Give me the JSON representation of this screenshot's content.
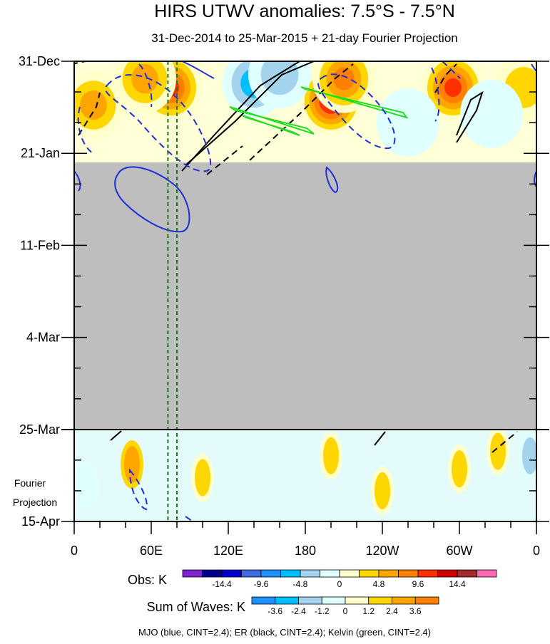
{
  "chart_data": {
    "type": "heatmap",
    "title": "HIRS UTWV anomalies: 7.5°S - 7.5°N",
    "subtitle": "31-Dec-2014 to 25-Mar-2015 + 21-day Fourier Projection",
    "x_ticks": [
      "0",
      "60E",
      "120E",
      "180",
      "120W",
      "60W",
      "0"
    ],
    "x_values": [
      0,
      60,
      120,
      180,
      240,
      300,
      360
    ],
    "y_ticks": [
      "31-Dec",
      "21-Jan",
      "11-Feb",
      "4-Mar",
      "25-Mar",
      "15-Apr"
    ],
    "y_days": [
      0,
      21,
      42,
      63,
      84,
      105
    ],
    "obs_end_day": 23,
    "projection_start_day": 84,
    "projection_label": [
      "Fourier",
      "Projection"
    ],
    "missing_color": "#bebebe",
    "obs_colorbar": {
      "label": "Obs: K",
      "colors": [
        "#7d26cd",
        "#00008b",
        "#0000cd",
        "#4169e1",
        "#1e90ff",
        "#00bfff",
        "#a4d3ee",
        "#e0ffff",
        "#ffffcc",
        "#ffd700",
        "#ffa500",
        "#ff7f00",
        "#ff3000",
        "#cd0000",
        "#a52a2a",
        "#ff69b4"
      ],
      "labels": [
        "-14.4",
        "-9.6",
        "-4.8",
        "0",
        "4.8",
        "9.6",
        "14.4"
      ]
    },
    "waves_colorbar": {
      "label": "Sum of Waves: K",
      "colors": [
        "#1e90ff",
        "#00bfff",
        "#a4d3ee",
        "#e0ffff",
        "#ffffcc",
        "#ffd700",
        "#ffa500",
        "#ff7f00"
      ],
      "labels": [
        "-3.6",
        "-2.4",
        "-1.2",
        "0",
        "1.2",
        "2.4",
        "3.6"
      ]
    },
    "legend_text": "MJO (blue, CINT=2.4); ER (black, CINT=2.4); Kelvin (green, CINT=2.4)",
    "contour_colors": {
      "mjo": "#1e2fd6",
      "er": "#000000",
      "kelvin": "#22dd22",
      "marker": "#1a7a1a"
    },
    "marker_lines_lon": [
      73,
      80
    ],
    "obs_hotspots": [
      {
        "lon": 75,
        "day": 6,
        "value": 12
      },
      {
        "lon": 55,
        "day": 4,
        "value": 8
      },
      {
        "lon": 15,
        "day": 10,
        "value": 6
      },
      {
        "lon": 200,
        "day": 9,
        "value": 14
      },
      {
        "lon": 210,
        "day": 4,
        "value": 10
      },
      {
        "lon": 295,
        "day": 6,
        "value": 12
      },
      {
        "lon": 350,
        "day": 6,
        "value": 5
      },
      {
        "lon": 140,
        "day": 5,
        "value": -6
      },
      {
        "lon": 160,
        "day": 3,
        "value": -5
      },
      {
        "lon": 260,
        "day": 14,
        "value": -3
      },
      {
        "lon": 325,
        "day": 12,
        "value": -3
      }
    ],
    "wave_hotspots": [
      {
        "lon": 45,
        "day": 92,
        "value": 2.4
      },
      {
        "lon": 100,
        "day": 95,
        "value": 1.2
      },
      {
        "lon": 200,
        "day": 90,
        "value": 1.5
      },
      {
        "lon": 240,
        "day": 98,
        "value": 1.2
      },
      {
        "lon": 300,
        "day": 93,
        "value": 1.8
      },
      {
        "lon": 330,
        "day": 89,
        "value": 1.5
      },
      {
        "lon": 355,
        "day": 90,
        "value": -1.8
      },
      {
        "lon": 10,
        "day": 97,
        "value": -1.2
      }
    ]
  }
}
